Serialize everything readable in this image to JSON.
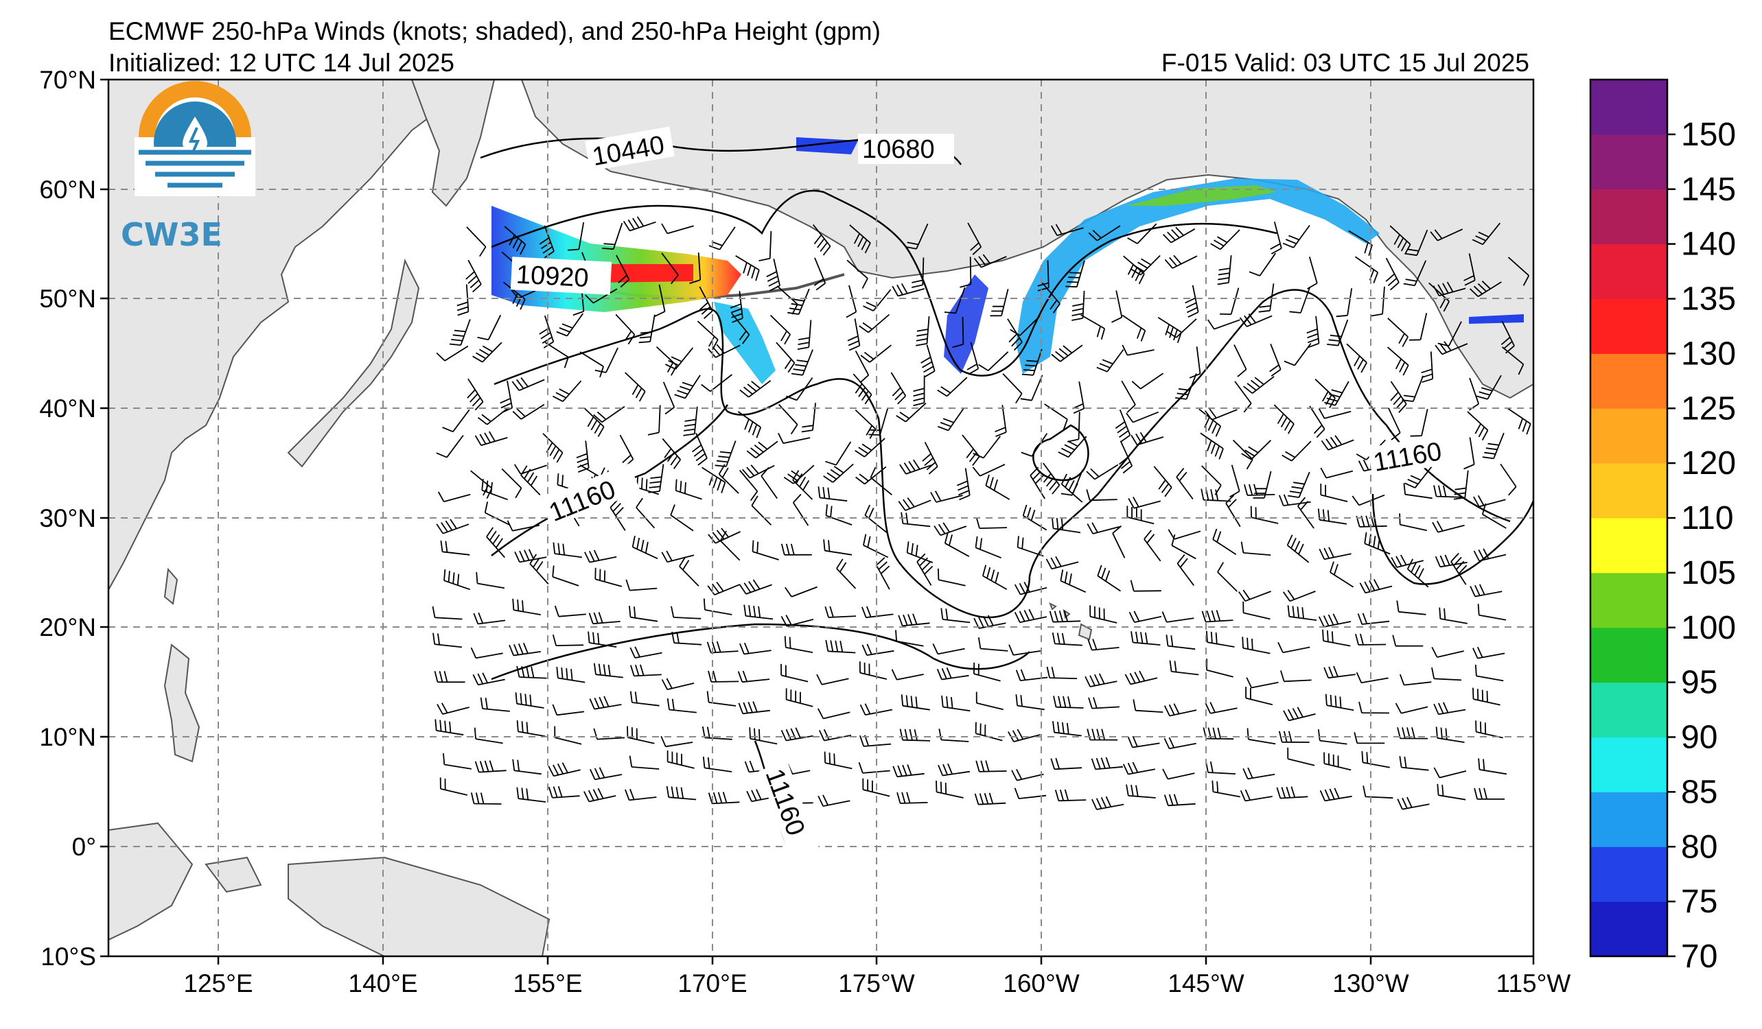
{
  "header": {
    "title": "ECMWF 250-hPa Winds (knots; shaded), and 250-hPa Height (gpm)",
    "initialized": "Initialized: 12 UTC 14 Jul 2025",
    "valid": "F-015  Valid: 03 UTC 15 Jul 2025"
  },
  "logo": {
    "text": "CW3E",
    "colors": {
      "ring": "#f39a1e",
      "water": "#2b84b8"
    }
  },
  "axes": {
    "lat_labels": [
      "70°N",
      "60°N",
      "50°N",
      "40°N",
      "30°N",
      "20°N",
      "10°N",
      "0°",
      "10°S"
    ],
    "lon_labels": [
      "125°E",
      "140°E",
      "155°E",
      "170°E",
      "175°W",
      "160°W",
      "145°W",
      "130°W",
      "115°W"
    ]
  },
  "colorbar": {
    "labels": [
      "70",
      "75",
      "80",
      "85",
      "90",
      "95",
      "100",
      "105",
      "110",
      "120",
      "125",
      "130",
      "135",
      "140",
      "145",
      "150"
    ],
    "colors": [
      "#1b1ec4",
      "#2342e8",
      "#1f9cf0",
      "#20eeee",
      "#1fdea8",
      "#1fc02a",
      "#70d020",
      "#ffff20",
      "#ffc820",
      "#ffa820",
      "#ff7c20",
      "#ff2020",
      "#e81e38",
      "#b01e5a",
      "#8c1e78",
      "#6a1e8c"
    ]
  },
  "contour_labels": [
    "10440",
    "10680",
    "10920",
    "11160",
    "11160",
    "11160"
  ],
  "map_colors": {
    "land": "#e6e6e6",
    "coast": "#555555",
    "grid": "#8a8a8a"
  }
}
